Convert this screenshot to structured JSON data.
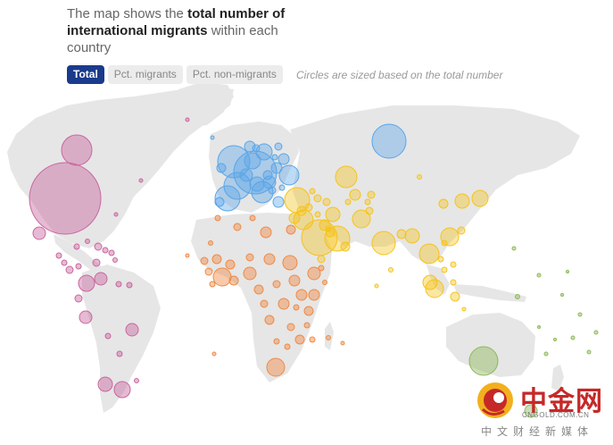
{
  "headline": {
    "part1": "The map shows the ",
    "bold": "total number of international migrants",
    "part2": " within each country"
  },
  "tabs": [
    {
      "label": "Total",
      "active": true
    },
    {
      "label": "Pct. migrants",
      "active": false
    },
    {
      "label": "Pct. non-migrants",
      "active": false
    }
  ],
  "note": "Circles are sized based on the total number",
  "map": {
    "land_color": "#e6e6e6",
    "region_colors": {
      "americas": "#c9679f",
      "europe": "#5aa6e8",
      "africa": "#ef8a45",
      "asia_middle_east": "#f5c31c",
      "oceania": "#8fb85a"
    }
  },
  "watermark": {
    "text_cn": "中金网",
    "domain": "CNGOLD.COM.CN",
    "subtitle": "中文财经新媒体"
  }
}
